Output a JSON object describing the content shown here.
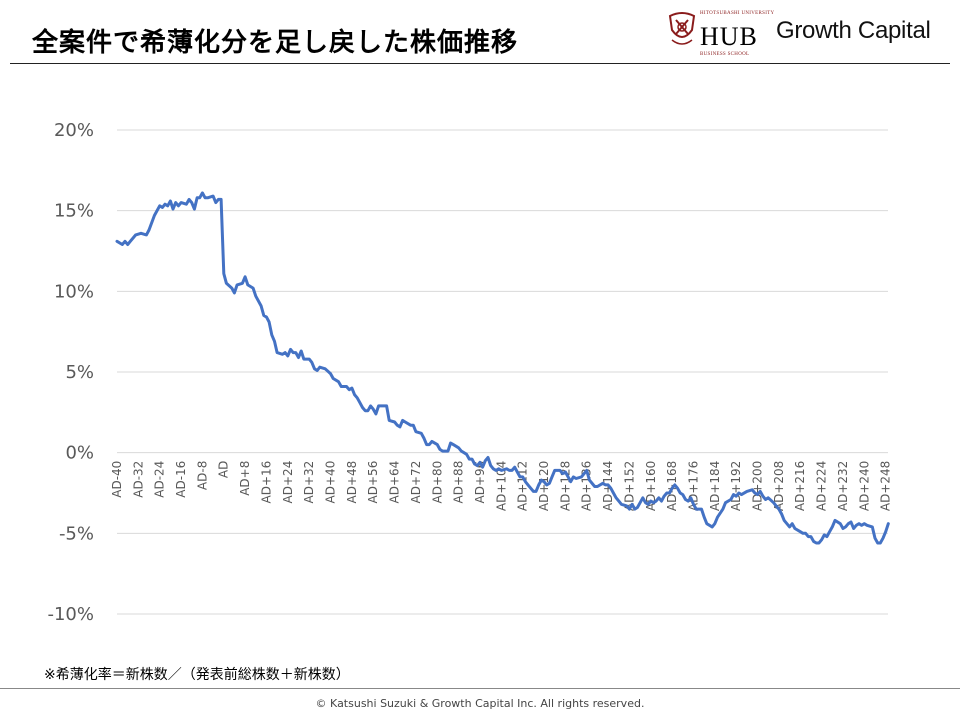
{
  "slide": {
    "title": "全案件で希薄化分を足し戻した株価推移",
    "footnote": "※希薄化率＝新株数／（発表前総株数＋新株数）",
    "copyright": "© Katsushi Suzuki & Growth Capital Inc. All rights reserved."
  },
  "logos": {
    "hub_university": "HITOTSUBASHI UNIVERSITY",
    "hub_word": "HUB",
    "hub_school": "BUSINESS SCHOOL",
    "growth_capital": "Growth Capital"
  },
  "colors": {
    "line": "#4472c4",
    "grid": "#d9d9d9",
    "tick_text": "#595959",
    "hub_red": "#8a1c1c"
  },
  "chart_data": {
    "type": "line",
    "title": "",
    "xlabel": "",
    "ylabel": "",
    "ylim": [
      -0.1,
      0.2
    ],
    "y_ticks": [
      0.2,
      0.15,
      0.1,
      0.05,
      0.0,
      -0.05,
      -0.1
    ],
    "y_tick_labels": [
      "20%",
      "15%",
      "10%",
      "5%",
      "0%",
      "-5%",
      "-10%"
    ],
    "x_range": [
      -40,
      250
    ],
    "x_ticks": [
      -40,
      -32,
      -24,
      -16,
      -8,
      0,
      8,
      16,
      24,
      32,
      40,
      48,
      56,
      64,
      72,
      80,
      88,
      96,
      104,
      112,
      120,
      128,
      136,
      144,
      152,
      160,
      168,
      176,
      184,
      192,
      200,
      208,
      216,
      224,
      232,
      240,
      248
    ],
    "x_tick_labels": [
      "AD-40",
      "AD-32",
      "AD-24",
      "AD-16",
      "AD-8",
      "AD",
      "AD+8",
      "AD+16",
      "AD+24",
      "AD+32",
      "AD+40",
      "AD+48",
      "AD+56",
      "AD+64",
      "AD+72",
      "AD+80",
      "AD+88",
      "AD+96",
      "AD+104",
      "AD+112",
      "AD+120",
      "AD+128",
      "AD+136",
      "AD+144",
      "AD+152",
      "AD+160",
      "AD+168",
      "AD+176",
      "AD+184",
      "AD+192",
      "AD+200",
      "AD+208",
      "AD+216",
      "AD+224",
      "AD+232",
      "AD+240",
      "AD+248"
    ],
    "grid": true,
    "legend": "none",
    "series": [
      {
        "points": [
          [
            -40,
            0.131
          ],
          [
            -38,
            0.129
          ],
          [
            -37,
            0.131
          ],
          [
            -36,
            0.129
          ],
          [
            -35,
            0.131
          ],
          [
            -33,
            0.135
          ],
          [
            -31,
            0.136
          ],
          [
            -29,
            0.135
          ],
          [
            -28,
            0.138
          ],
          [
            -26,
            0.147
          ],
          [
            -24,
            0.153
          ],
          [
            -23,
            0.152
          ],
          [
            -22,
            0.154
          ],
          [
            -21,
            0.153
          ],
          [
            -20,
            0.156
          ],
          [
            -19,
            0.151
          ],
          [
            -18,
            0.155
          ],
          [
            -17,
            0.153
          ],
          [
            -16,
            0.155
          ],
          [
            -14,
            0.154
          ],
          [
            -13,
            0.157
          ],
          [
            -12,
            0.155
          ],
          [
            -11,
            0.151
          ],
          [
            -10,
            0.158
          ],
          [
            -9,
            0.158
          ],
          [
            -8,
            0.161
          ],
          [
            -7,
            0.158
          ],
          [
            -6,
            0.158
          ],
          [
            -4,
            0.159
          ],
          [
            -3,
            0.155
          ],
          [
            -2,
            0.157
          ],
          [
            -1,
            0.157
          ],
          [
            0,
            0.111
          ],
          [
            1,
            0.105
          ],
          [
            3,
            0.102
          ],
          [
            4,
            0.099
          ],
          [
            5,
            0.104
          ],
          [
            7,
            0.105
          ],
          [
            8,
            0.109
          ],
          [
            9,
            0.104
          ],
          [
            11,
            0.102
          ],
          [
            12,
            0.097
          ],
          [
            14,
            0.091
          ],
          [
            15,
            0.085
          ],
          [
            16,
            0.084
          ],
          [
            17,
            0.081
          ],
          [
            18,
            0.073
          ],
          [
            19,
            0.069
          ],
          [
            20,
            0.062
          ],
          [
            22,
            0.061
          ],
          [
            23,
            0.062
          ],
          [
            24,
            0.06
          ],
          [
            25,
            0.064
          ],
          [
            26,
            0.062
          ],
          [
            27,
            0.062
          ],
          [
            28,
            0.059
          ],
          [
            29,
            0.063
          ],
          [
            30,
            0.058
          ],
          [
            32,
            0.058
          ],
          [
            33,
            0.056
          ],
          [
            34,
            0.052
          ],
          [
            35,
            0.051
          ],
          [
            36,
            0.053
          ],
          [
            38,
            0.052
          ],
          [
            40,
            0.049
          ],
          [
            41,
            0.046
          ],
          [
            43,
            0.044
          ],
          [
            44,
            0.041
          ],
          [
            46,
            0.041
          ],
          [
            47,
            0.039
          ],
          [
            48,
            0.04
          ],
          [
            49,
            0.036
          ],
          [
            50,
            0.034
          ],
          [
            51,
            0.031
          ],
          [
            52,
            0.028
          ],
          [
            53,
            0.026
          ],
          [
            54,
            0.026
          ],
          [
            55,
            0.029
          ],
          [
            56,
            0.027
          ],
          [
            57,
            0.024
          ],
          [
            58,
            0.029
          ],
          [
            60,
            0.029
          ],
          [
            61,
            0.029
          ],
          [
            62,
            0.02
          ],
          [
            64,
            0.019
          ],
          [
            65,
            0.017
          ],
          [
            66,
            0.016
          ],
          [
            67,
            0.02
          ],
          [
            68,
            0.019
          ],
          [
            70,
            0.017
          ],
          [
            71,
            0.017
          ],
          [
            72,
            0.013
          ],
          [
            74,
            0.012
          ],
          [
            75,
            0.009
          ],
          [
            76,
            0.005
          ],
          [
            77,
            0.005
          ],
          [
            78,
            0.007
          ],
          [
            80,
            0.005
          ],
          [
            81,
            0.002
          ],
          [
            82,
            0.001
          ],
          [
            84,
            0.001
          ],
          [
            85,
            0.006
          ],
          [
            86,
            0.005
          ],
          [
            88,
            0.003
          ],
          [
            89,
            0.001
          ],
          [
            90,
            0.0
          ],
          [
            91,
            -0.001
          ],
          [
            92,
            -0.004
          ],
          [
            93,
            -0.004
          ],
          [
            94,
            -0.007
          ],
          [
            95,
            -0.008
          ],
          [
            96,
            -0.006
          ],
          [
            97,
            -0.009
          ],
          [
            98,
            -0.005
          ],
          [
            99,
            -0.003
          ],
          [
            100,
            -0.008
          ],
          [
            101,
            -0.01
          ],
          [
            102,
            -0.011
          ],
          [
            103,
            -0.01
          ],
          [
            104,
            -0.011
          ],
          [
            106,
            -0.01
          ],
          [
            107,
            -0.011
          ],
          [
            108,
            -0.011
          ],
          [
            109,
            -0.009
          ],
          [
            110,
            -0.012
          ],
          [
            111,
            -0.015
          ],
          [
            112,
            -0.015
          ],
          [
            113,
            -0.018
          ],
          [
            114,
            -0.02
          ],
          [
            115,
            -0.022
          ],
          [
            116,
            -0.024
          ],
          [
            117,
            -0.024
          ],
          [
            118,
            -0.02
          ],
          [
            119,
            -0.017
          ],
          [
            120,
            -0.018
          ],
          [
            121,
            -0.02
          ],
          [
            122,
            -0.019
          ],
          [
            123,
            -0.015
          ],
          [
            124,
            -0.011
          ],
          [
            126,
            -0.011
          ],
          [
            127,
            -0.013
          ],
          [
            128,
            -0.012
          ],
          [
            129,
            -0.015
          ],
          [
            130,
            -0.018
          ],
          [
            131,
            -0.015
          ],
          [
            132,
            -0.016
          ],
          [
            134,
            -0.015
          ],
          [
            136,
            -0.011
          ],
          [
            137,
            -0.017
          ],
          [
            139,
            -0.021
          ],
          [
            140,
            -0.021
          ],
          [
            142,
            -0.019
          ],
          [
            143,
            -0.02
          ],
          [
            144,
            -0.02
          ],
          [
            145,
            -0.022
          ],
          [
            146,
            -0.025
          ],
          [
            147,
            -0.028
          ],
          [
            148,
            -0.03
          ],
          [
            149,
            -0.032
          ],
          [
            151,
            -0.033
          ],
          [
            152,
            -0.035
          ],
          [
            153,
            -0.032
          ],
          [
            154,
            -0.035
          ],
          [
            155,
            -0.034
          ],
          [
            156,
            -0.031
          ],
          [
            157,
            -0.028
          ],
          [
            158,
            -0.031
          ],
          [
            159,
            -0.032
          ],
          [
            160,
            -0.03
          ],
          [
            161,
            -0.031
          ],
          [
            162,
            -0.03
          ],
          [
            163,
            -0.028
          ],
          [
            164,
            -0.03
          ],
          [
            165,
            -0.027
          ],
          [
            166,
            -0.025
          ],
          [
            167,
            -0.025
          ],
          [
            168,
            -0.022
          ],
          [
            169,
            -0.02
          ],
          [
            170,
            -0.022
          ],
          [
            171,
            -0.025
          ],
          [
            172,
            -0.026
          ],
          [
            173,
            -0.029
          ],
          [
            174,
            -0.03
          ],
          [
            175,
            -0.028
          ],
          [
            176,
            -0.032
          ],
          [
            177,
            -0.035
          ],
          [
            179,
            -0.035
          ],
          [
            180,
            -0.04
          ],
          [
            181,
            -0.044
          ],
          [
            183,
            -0.046
          ],
          [
            184,
            -0.044
          ],
          [
            185,
            -0.04
          ],
          [
            187,
            -0.035
          ],
          [
            188,
            -0.031
          ],
          [
            190,
            -0.029
          ],
          [
            191,
            -0.026
          ],
          [
            192,
            -0.027
          ],
          [
            193,
            -0.025
          ],
          [
            194,
            -0.026
          ],
          [
            196,
            -0.024
          ],
          [
            198,
            -0.023
          ],
          [
            199,
            -0.025
          ],
          [
            200,
            -0.026
          ],
          [
            201,
            -0.024
          ],
          [
            202,
            -0.027
          ],
          [
            203,
            -0.029
          ],
          [
            204,
            -0.028
          ],
          [
            206,
            -0.031
          ],
          [
            207,
            -0.033
          ],
          [
            208,
            -0.035
          ],
          [
            209,
            -0.038
          ],
          [
            210,
            -0.042
          ],
          [
            212,
            -0.046
          ],
          [
            213,
            -0.044
          ],
          [
            214,
            -0.047
          ],
          [
            216,
            -0.049
          ],
          [
            217,
            -0.05
          ],
          [
            218,
            -0.05
          ],
          [
            219,
            -0.052
          ],
          [
            220,
            -0.052
          ],
          [
            221,
            -0.055
          ],
          [
            222,
            -0.056
          ],
          [
            223,
            -0.056
          ],
          [
            224,
            -0.054
          ],
          [
            225,
            -0.051
          ],
          [
            226,
            -0.052
          ],
          [
            227,
            -0.049
          ],
          [
            228,
            -0.046
          ],
          [
            229,
            -0.042
          ],
          [
            231,
            -0.044
          ],
          [
            232,
            -0.047
          ],
          [
            233,
            -0.046
          ],
          [
            234,
            -0.044
          ],
          [
            235,
            -0.043
          ],
          [
            236,
            -0.047
          ],
          [
            237,
            -0.045
          ],
          [
            238,
            -0.044
          ],
          [
            239,
            -0.045
          ],
          [
            240,
            -0.044
          ],
          [
            241,
            -0.045
          ],
          [
            243,
            -0.046
          ],
          [
            244,
            -0.053
          ],
          [
            245,
            -0.056
          ],
          [
            246,
            -0.056
          ],
          [
            247,
            -0.053
          ],
          [
            248,
            -0.049
          ],
          [
            249,
            -0.044
          ]
        ]
      }
    ]
  }
}
